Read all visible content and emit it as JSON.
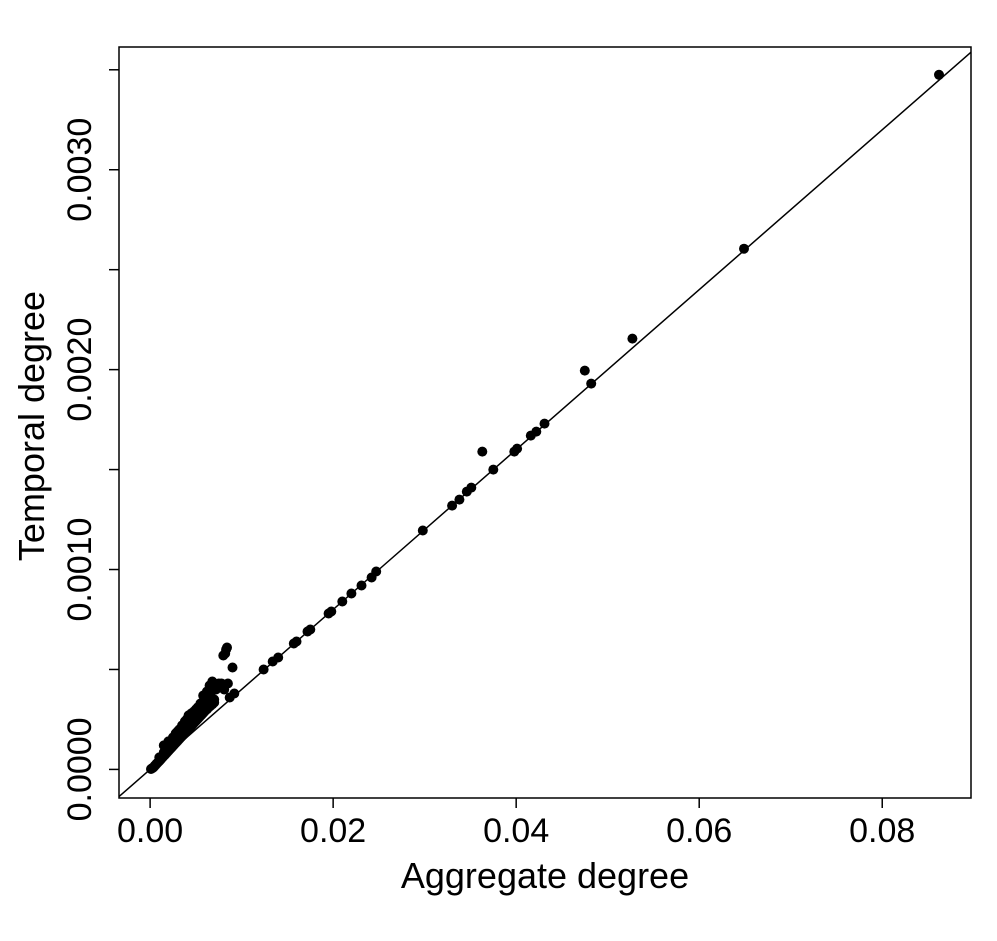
{
  "chart_data": {
    "type": "scatter",
    "xlabel": "Aggregate degree",
    "ylabel": "Temporal degree",
    "xlim": [
      -0.0034,
      0.0897
    ],
    "ylim": [
      -0.000143,
      0.003614
    ],
    "x_ticks": [
      0.0,
      0.02,
      0.04,
      0.06,
      0.08
    ],
    "x_tick_labels": [
      "0.00",
      "0.02",
      "0.04",
      "0.06",
      "0.08"
    ],
    "y_ticks": [
      0.0,
      0.0005,
      0.001,
      0.0015,
      0.002,
      0.0025,
      0.003,
      0.0035
    ],
    "y_tick_labels": [
      "0.0000",
      "",
      "0.0010",
      "",
      "0.0020",
      "",
      "0.0030",
      ""
    ],
    "grid": false,
    "reference_line": {
      "type": "y=x*k",
      "slope": 0.04,
      "intercept": 0
    },
    "marker_color": "#000000",
    "points": [
      [
        0.0001,
        2e-06
      ],
      [
        0.0002,
        5e-06
      ],
      [
        0.0003,
        8e-06
      ],
      [
        0.0004,
        1.2e-05
      ],
      [
        0.0005,
        1.8e-05
      ],
      [
        0.0006,
        2.2e-05
      ],
      [
        0.0007,
        2.8e-05
      ],
      [
        0.0008,
        3.2e-05
      ],
      [
        0.0009,
        3.8e-05
      ],
      [
        0.001,
        4.2e-05
      ],
      [
        0.0011,
        4.8e-05
      ],
      [
        0.0012,
        5.2e-05
      ],
      [
        0.0013,
        5.8e-05
      ],
      [
        0.0014,
        6.2e-05
      ],
      [
        0.0015,
        6.8e-05
      ],
      [
        0.0016,
        7.2e-05
      ],
      [
        0.0017,
        7.8e-05
      ],
      [
        0.0018,
        8.2e-05
      ],
      [
        0.0019,
        8.8e-05
      ],
      [
        0.002,
        9.2e-05
      ],
      [
        0.0021,
        9.8e-05
      ],
      [
        0.0022,
        0.000102
      ],
      [
        0.0023,
        0.000108
      ],
      [
        0.0024,
        0.000112
      ],
      [
        0.0025,
        0.000118
      ],
      [
        0.0026,
        0.000122
      ],
      [
        0.0027,
        0.000128
      ],
      [
        0.0028,
        0.000132
      ],
      [
        0.0029,
        0.000138
      ],
      [
        0.003,
        0.000142
      ],
      [
        0.0031,
        0.000148
      ],
      [
        0.0032,
        0.000152
      ],
      [
        0.0033,
        0.000158
      ],
      [
        0.0034,
        0.000162
      ],
      [
        0.0035,
        0.000168
      ],
      [
        0.0036,
        0.000172
      ],
      [
        0.0037,
        0.000178
      ],
      [
        0.0038,
        0.000182
      ],
      [
        0.0039,
        0.000188
      ],
      [
        0.004,
        0.000192
      ],
      [
        0.0041,
        0.000198
      ],
      [
        0.0042,
        0.000202
      ],
      [
        0.0043,
        0.000208
      ],
      [
        0.0044,
        0.000212
      ],
      [
        0.0045,
        0.000218
      ],
      [
        0.0046,
        0.000222
      ],
      [
        0.0047,
        0.000228
      ],
      [
        0.0048,
        0.000232
      ],
      [
        0.0049,
        0.000238
      ],
      [
        0.005,
        0.000242
      ],
      [
        0.0051,
        0.000248
      ],
      [
        0.0052,
        0.000252
      ],
      [
        0.0053,
        0.000258
      ],
      [
        0.0054,
        0.000262
      ],
      [
        0.0055,
        0.000268
      ],
      [
        0.0056,
        0.000272
      ],
      [
        0.0057,
        0.000278
      ],
      [
        0.0058,
        0.000282
      ],
      [
        0.0059,
        0.000288
      ],
      [
        0.006,
        0.000292
      ],
      [
        0.0062,
        0.0003
      ],
      [
        0.0064,
        0.00031
      ],
      [
        0.0066,
        0.000318
      ],
      [
        0.0068,
        0.000325
      ],
      [
        0.007,
        0.000335
      ],
      [
        0.001,
        6e-05
      ],
      [
        0.0015,
        8.5e-05
      ],
      [
        0.002,
        0.00011
      ],
      [
        0.0025,
        0.000135
      ],
      [
        0.003,
        0.00016
      ],
      [
        0.0035,
        0.000185
      ],
      [
        0.004,
        0.00021
      ],
      [
        0.0045,
        0.000235
      ],
      [
        0.005,
        0.00026
      ],
      [
        0.0055,
        0.000285
      ],
      [
        0.006,
        0.00031
      ],
      [
        0.0015,
        0.00012
      ],
      [
        0.002,
        0.00014
      ],
      [
        0.0025,
        0.00016
      ],
      [
        0.003,
        0.00019
      ],
      [
        0.0035,
        0.00022
      ],
      [
        0.004,
        0.00025
      ],
      [
        0.0045,
        0.00028
      ],
      [
        0.005,
        0.0003
      ],
      [
        0.0055,
        0.00033
      ],
      [
        0.006,
        0.00035
      ],
      [
        0.0028,
        0.00018
      ],
      [
        0.0032,
        0.0002
      ],
      [
        0.0038,
        0.00024
      ],
      [
        0.0042,
        0.00027
      ],
      [
        0.0048,
        0.00029
      ],
      [
        0.0052,
        0.00031
      ],
      [
        0.0058,
        0.00034
      ],
      [
        0.0063,
        0.00036
      ],
      [
        0.0066,
        0.00038
      ],
      [
        0.007,
        0.00035
      ],
      [
        0.0072,
        0.0004
      ],
      [
        0.0058,
        0.00037
      ],
      [
        0.0062,
        0.00039
      ],
      [
        0.0065,
        0.00042
      ],
      [
        0.0068,
        0.00044
      ],
      [
        0.0075,
        0.00043
      ],
      [
        0.0078,
        0.00043
      ],
      [
        0.0081,
        0.0004
      ],
      [
        0.0082,
        0.000425
      ],
      [
        0.0085,
        0.00043
      ],
      [
        0.0087,
        0.00036
      ],
      [
        0.0092,
        0.00038
      ],
      [
        0.008,
        0.00057
      ],
      [
        0.0083,
        0.0006
      ],
      [
        0.0084,
        0.00061
      ],
      [
        0.0082,
        0.00058
      ],
      [
        0.009,
        0.00051
      ],
      [
        0.0124,
        0.0005
      ],
      [
        0.0134,
        0.00054
      ],
      [
        0.014,
        0.00056
      ],
      [
        0.0157,
        0.00063
      ],
      [
        0.016,
        0.00064
      ],
      [
        0.0172,
        0.00069
      ],
      [
        0.0175,
        0.0007
      ],
      [
        0.0195,
        0.00078
      ],
      [
        0.0198,
        0.00079
      ],
      [
        0.021,
        0.00084
      ],
      [
        0.022,
        0.00088
      ],
      [
        0.0231,
        0.00092
      ],
      [
        0.0242,
        0.00096
      ],
      [
        0.0247,
        0.00099
      ],
      [
        0.0298,
        0.001195
      ],
      [
        0.033,
        0.00132
      ],
      [
        0.0338,
        0.00135
      ],
      [
        0.0346,
        0.00139
      ],
      [
        0.0351,
        0.00141
      ],
      [
        0.0363,
        0.00159
      ],
      [
        0.0375,
        0.0015
      ],
      [
        0.0398,
        0.00159
      ],
      [
        0.0401,
        0.001605
      ],
      [
        0.0416,
        0.00167
      ],
      [
        0.0422,
        0.00169
      ],
      [
        0.0431,
        0.00173
      ],
      [
        0.0475,
        0.001995
      ],
      [
        0.0482,
        0.00193
      ],
      [
        0.0527,
        0.002155
      ],
      [
        0.0649,
        0.002605
      ],
      [
        0.0862,
        0.003475
      ]
    ]
  }
}
